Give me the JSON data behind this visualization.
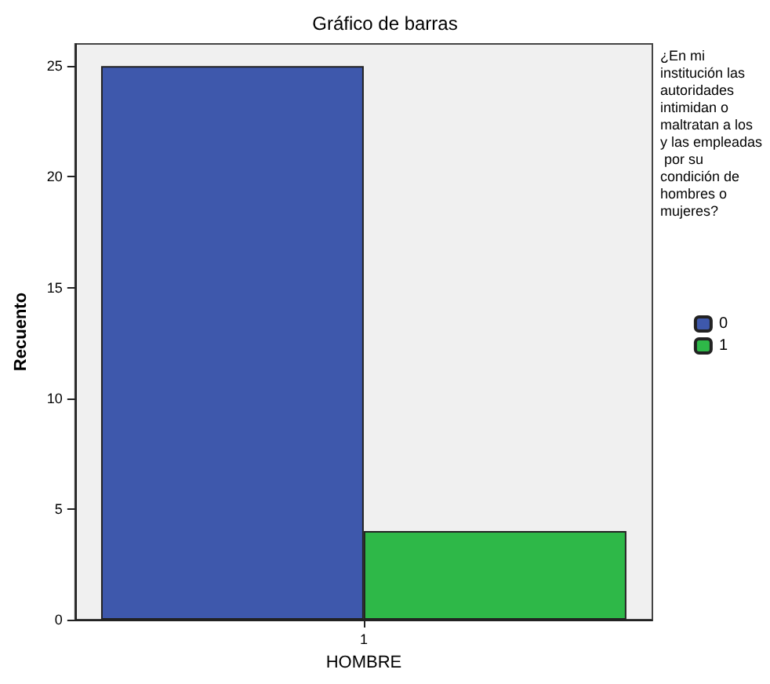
{
  "chart_data": {
    "type": "bar",
    "title": "Gráfico de barras",
    "xlabel": "HOMBRE",
    "ylabel": "Recuento",
    "legend_title": "¿En mi institución las autoridades intimidan o maltratan a los y las empleadas por su condición de hombres o mujeres?",
    "categories": [
      "1"
    ],
    "series": [
      {
        "name": "0",
        "color": "#3e58ac",
        "values": [
          25
        ]
      },
      {
        "name": "1",
        "color": "#2eb848",
        "values": [
          4
        ]
      }
    ],
    "ylim": [
      0,
      26
    ],
    "yticks": [
      0,
      5,
      10,
      15,
      20,
      25
    ],
    "grid": false,
    "legend": "right"
  }
}
